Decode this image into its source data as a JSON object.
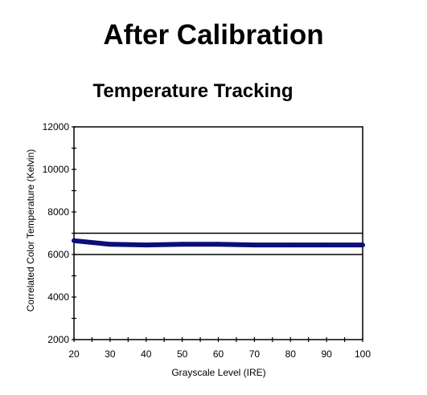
{
  "page": {
    "heading": "After Calibration"
  },
  "chart_data": {
    "type": "line",
    "title": "Temperature Tracking",
    "xlabel": "Grayscale Level (IRE)",
    "ylabel": "Correlated Color Temperature (Kelvin)",
    "xlim": [
      20,
      100
    ],
    "ylim": [
      2000,
      12000
    ],
    "x_ticks": [
      20,
      30,
      40,
      50,
      60,
      70,
      80,
      90,
      100
    ],
    "x_tick_labels": [
      "20",
      "30",
      "40",
      "50",
      "60",
      "70",
      "80",
      "90",
      "100"
    ],
    "y_ticks": [
      2000,
      4000,
      6000,
      8000,
      10000,
      12000
    ],
    "y_tick_labels": [
      "2000",
      "4000",
      "6000",
      "8000",
      "10000",
      "12000"
    ],
    "reference_lines": [
      6000,
      7000
    ],
    "grid": false,
    "legend": "none",
    "series": [
      {
        "x": [
          20,
          30,
          40,
          50,
          60,
          70,
          80,
          90,
          100
        ],
        "y": [
          6650,
          6480,
          6450,
          6480,
          6480,
          6450,
          6450,
          6450,
          6450
        ],
        "color": "#0d0d7a"
      }
    ],
    "reference_color": "#000000"
  }
}
